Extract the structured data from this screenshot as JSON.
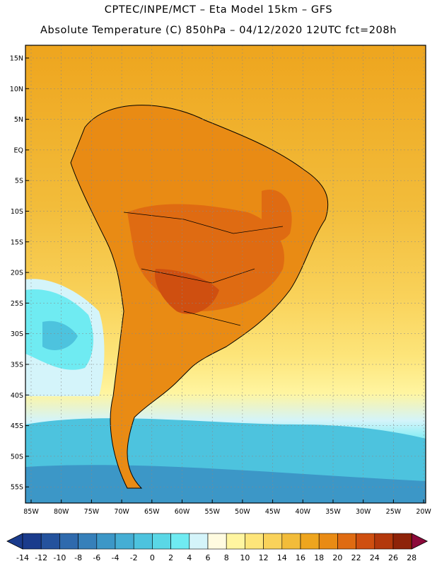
{
  "title": {
    "line1": "CPTEC/INPE/MCT –  Eta Model 15km – GFS",
    "line2": "Absolute Temperature (C) 850hPa – 04/12/2020 12UTC fct=208h"
  },
  "map": {
    "lat_labels": [
      "15N",
      "10N",
      "5N",
      "EQ",
      "5S",
      "10S",
      "15S",
      "20S",
      "25S",
      "30S",
      "35S",
      "40S",
      "45S",
      "50S",
      "55S"
    ],
    "lon_labels": [
      "85W",
      "80W",
      "75W",
      "70W",
      "65W",
      "60W",
      "55W",
      "50W",
      "45W",
      "40W",
      "35W",
      "30W",
      "25W",
      "20W"
    ]
  },
  "colorbar": {
    "labels": [
      "-14",
      "-12",
      "-10",
      "-8",
      "-6",
      "-4",
      "-2",
      "0",
      "2",
      "4",
      "6",
      "8",
      "10",
      "12",
      "14",
      "16",
      "18",
      "20",
      "22",
      "24",
      "26",
      "28"
    ],
    "colors": [
      "#1a3b8c",
      "#24529d",
      "#2f6aad",
      "#3680ba",
      "#3c97c7",
      "#45aed4",
      "#4dc3de",
      "#5ad7e6",
      "#6febf2",
      "#d4f4fa",
      "#fffbe0",
      "#fff5a0",
      "#fde57a",
      "#f9d25a",
      "#f2bc3a",
      "#eea51e",
      "#e98b14",
      "#df6b12",
      "#cf4f10",
      "#b3380c",
      "#8e2309",
      "#6e1507",
      "#8c0a3a"
    ]
  }
}
